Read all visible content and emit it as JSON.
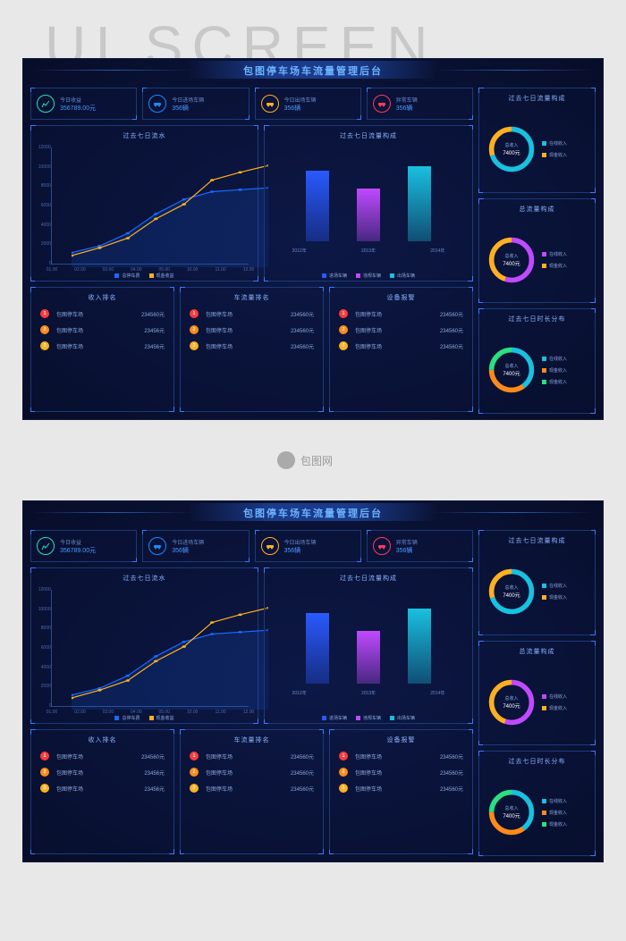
{
  "watermark_big": "UI SCREEN",
  "watermark_center": "包图网",
  "header_title": "包图停车场车流量管理后台",
  "kpis": [
    {
      "label": "今日收益",
      "value": "356789.00元",
      "icon_color": "#2ae0c0",
      "icon": "chart"
    },
    {
      "label": "今日进场车辆",
      "value": "356辆",
      "icon_color": "#1a8aff",
      "icon": "car-in"
    },
    {
      "label": "今日出场车辆",
      "value": "356辆",
      "icon_color": "#ffb020",
      "icon": "car-out"
    },
    {
      "label": "异常车辆",
      "value": "356辆",
      "icon_color": "#ff3a5a",
      "icon": "car"
    }
  ],
  "line_chart": {
    "title": "过去七日流水",
    "ylim": [
      0,
      12000
    ],
    "yticks": [
      0,
      2000,
      4000,
      6000,
      8000,
      10000,
      12000
    ],
    "xticks": [
      "01.00",
      "02.00",
      "03.00",
      "04.00",
      "05.00",
      "10.00",
      "11.00",
      "12.00"
    ],
    "series1": {
      "label": "总停车费",
      "color": "#1a6aff",
      "values": [
        1500,
        2200,
        3500,
        5500,
        7000,
        7800,
        8000,
        8200
      ]
    },
    "series2": {
      "label": "现金收益",
      "color": "#ffb020",
      "values": [
        1200,
        2000,
        3000,
        5000,
        6500,
        9000,
        9800,
        10500
      ]
    }
  },
  "bar_chart": {
    "title": "过去七日流量构成",
    "ymax": 100,
    "bars": [
      {
        "label": "2012年",
        "value": 80,
        "color": "#2a5aff"
      },
      {
        "label": "2013年",
        "value": 60,
        "color": "#c04aff"
      },
      {
        "label": "2014年",
        "value": 85,
        "color": "#1ac0e0"
      }
    ],
    "legend": [
      {
        "label": "进场车辆",
        "color": "#2a5aff"
      },
      {
        "label": "违规车辆",
        "color": "#c04aff"
      },
      {
        "label": "出场车辆",
        "color": "#1ac0e0"
      }
    ]
  },
  "rank_panels": [
    {
      "title": "收入排名",
      "items": [
        {
          "rank": "1",
          "badge_color": "#ff3a3a",
          "name": "包图停车场",
          "value": "234560元"
        },
        {
          "rank": "2",
          "badge_color": "#ff8a1a",
          "name": "包图停车场",
          "value": "23456元"
        },
        {
          "rank": "3",
          "badge_color": "#ffb020",
          "name": "包图停车场",
          "value": "23456元"
        }
      ]
    },
    {
      "title": "车流量排名",
      "items": [
        {
          "rank": "1",
          "badge_color": "#ff3a3a",
          "name": "包图停车场",
          "value": "234560元"
        },
        {
          "rank": "2",
          "badge_color": "#ff8a1a",
          "name": "包图停车场",
          "value": "234560元"
        },
        {
          "rank": "3",
          "badge_color": "#ffb020",
          "name": "包图停车场",
          "value": "234560元"
        }
      ]
    },
    {
      "title": "设备报警",
      "items": [
        {
          "rank": "1",
          "badge_color": "#ff3a3a",
          "name": "包图停车场",
          "value": "234560元"
        },
        {
          "rank": "2",
          "badge_color": "#ff8a1a",
          "name": "包图停车场",
          "value": "234560元"
        },
        {
          "rank": "3",
          "badge_color": "#ffb020",
          "name": "包图停车场",
          "value": "234560元"
        }
      ]
    }
  ],
  "donuts": [
    {
      "title": "过去七日流量构成",
      "center_label": "总收入",
      "center_value": "7400元",
      "segments": [
        {
          "color": "#1ac0e0",
          "pct": 70
        },
        {
          "color": "#ffb020",
          "pct": 30
        }
      ],
      "legend": [
        {
          "label": "在线收入",
          "color": "#1ac0e0"
        },
        {
          "label": "现金收入",
          "color": "#ffb020"
        }
      ]
    },
    {
      "title": "总流量构成",
      "center_label": "总收入",
      "center_value": "7400元",
      "segments": [
        {
          "color": "#c04aff",
          "pct": 55
        },
        {
          "color": "#ffb020",
          "pct": 45
        }
      ],
      "legend": [
        {
          "label": "在线收入",
          "color": "#c04aff"
        },
        {
          "label": "现金收入",
          "color": "#ffb020"
        }
      ]
    },
    {
      "title": "过去七日时长分布",
      "center_label": "总收入",
      "center_value": "7400元",
      "segments": [
        {
          "color": "#1ac0e0",
          "pct": 40
        },
        {
          "color": "#ff8a1a",
          "pct": 35
        },
        {
          "color": "#2ae080",
          "pct": 25
        }
      ],
      "legend": [
        {
          "label": "在线收入",
          "color": "#1ac0e0"
        },
        {
          "label": "现金收入",
          "color": "#ff8a1a"
        },
        {
          "label": "现金收入",
          "color": "#2ae080"
        }
      ]
    }
  ]
}
